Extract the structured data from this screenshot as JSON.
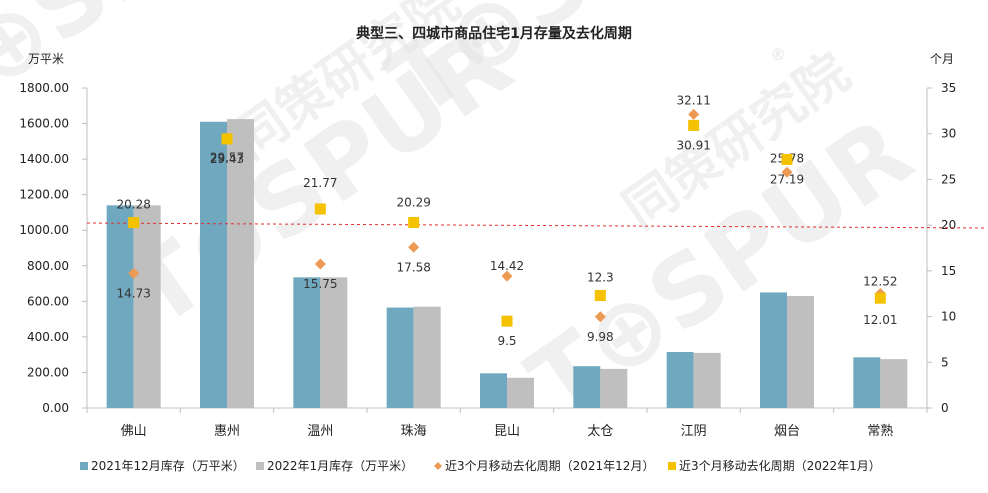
{
  "chart_data": {
    "type": "bar",
    "title": "典型三、四城市商品住宅1月存量及去化周期",
    "left_axis_unit": "万平米",
    "right_axis_unit": "个月",
    "categories": [
      "佛山",
      "惠州",
      "温州",
      "珠海",
      "昆山",
      "太仓",
      "江阴",
      "烟台",
      "常熟"
    ],
    "left_axis": {
      "min": 0,
      "max": 1800,
      "step": 200,
      "tick_labels": [
        "0.00",
        "200.00",
        "400.00",
        "600.00",
        "800.00",
        "1000.00",
        "1200.00",
        "1400.00",
        "1600.00",
        "1800.00"
      ]
    },
    "right_axis": {
      "min": 0,
      "max": 35,
      "step": 5,
      "tick_labels": [
        "0",
        "5",
        "10",
        "15",
        "20",
        "25",
        "30",
        "35"
      ]
    },
    "bar_series": [
      {
        "name": "2021年12月库存（万平米）",
        "color": "#6fa8bf",
        "values": [
          1140,
          1610,
          735,
          565,
          195,
          235,
          315,
          650,
          285
        ]
      },
      {
        "name": "2022年1月库存（万平米）",
        "color": "#bfbfbf",
        "values": [
          1140,
          1625,
          735,
          570,
          170,
          220,
          310,
          630,
          275
        ]
      }
    ],
    "marker_series": [
      {
        "name": "近3个月移动去化周期（2021年12月）",
        "shape": "diamond",
        "color": "#ed9a55",
        "values": [
          14.73,
          29.57,
          15.75,
          17.58,
          14.42,
          9.98,
          32.11,
          25.78,
          12.52
        ],
        "labels": [
          "14.73",
          "29.57",
          "15.75",
          "17.58",
          "14.42",
          "9.98",
          "32.11",
          "25.78",
          "12.52"
        ]
      },
      {
        "name": "近3个月移动去化周期（2022年1月）",
        "shape": "square",
        "color": "#f5c200",
        "values": [
          20.28,
          29.43,
          21.77,
          20.29,
          9.5,
          12.3,
          30.91,
          27.19,
          12.01
        ],
        "labels": [
          "20.28",
          "29.43",
          "21.77",
          "20.29",
          "9.5",
          "12.3",
          "30.91",
          "27.19",
          "12.01"
        ]
      }
    ],
    "reference_line": {
      "style": "dashed",
      "color": "#e03030"
    },
    "legend_position": "bottom",
    "grid": false
  },
  "watermark": {
    "text": "T⊕SPUR",
    "sub": "同策研究院",
    "mark": "®"
  }
}
